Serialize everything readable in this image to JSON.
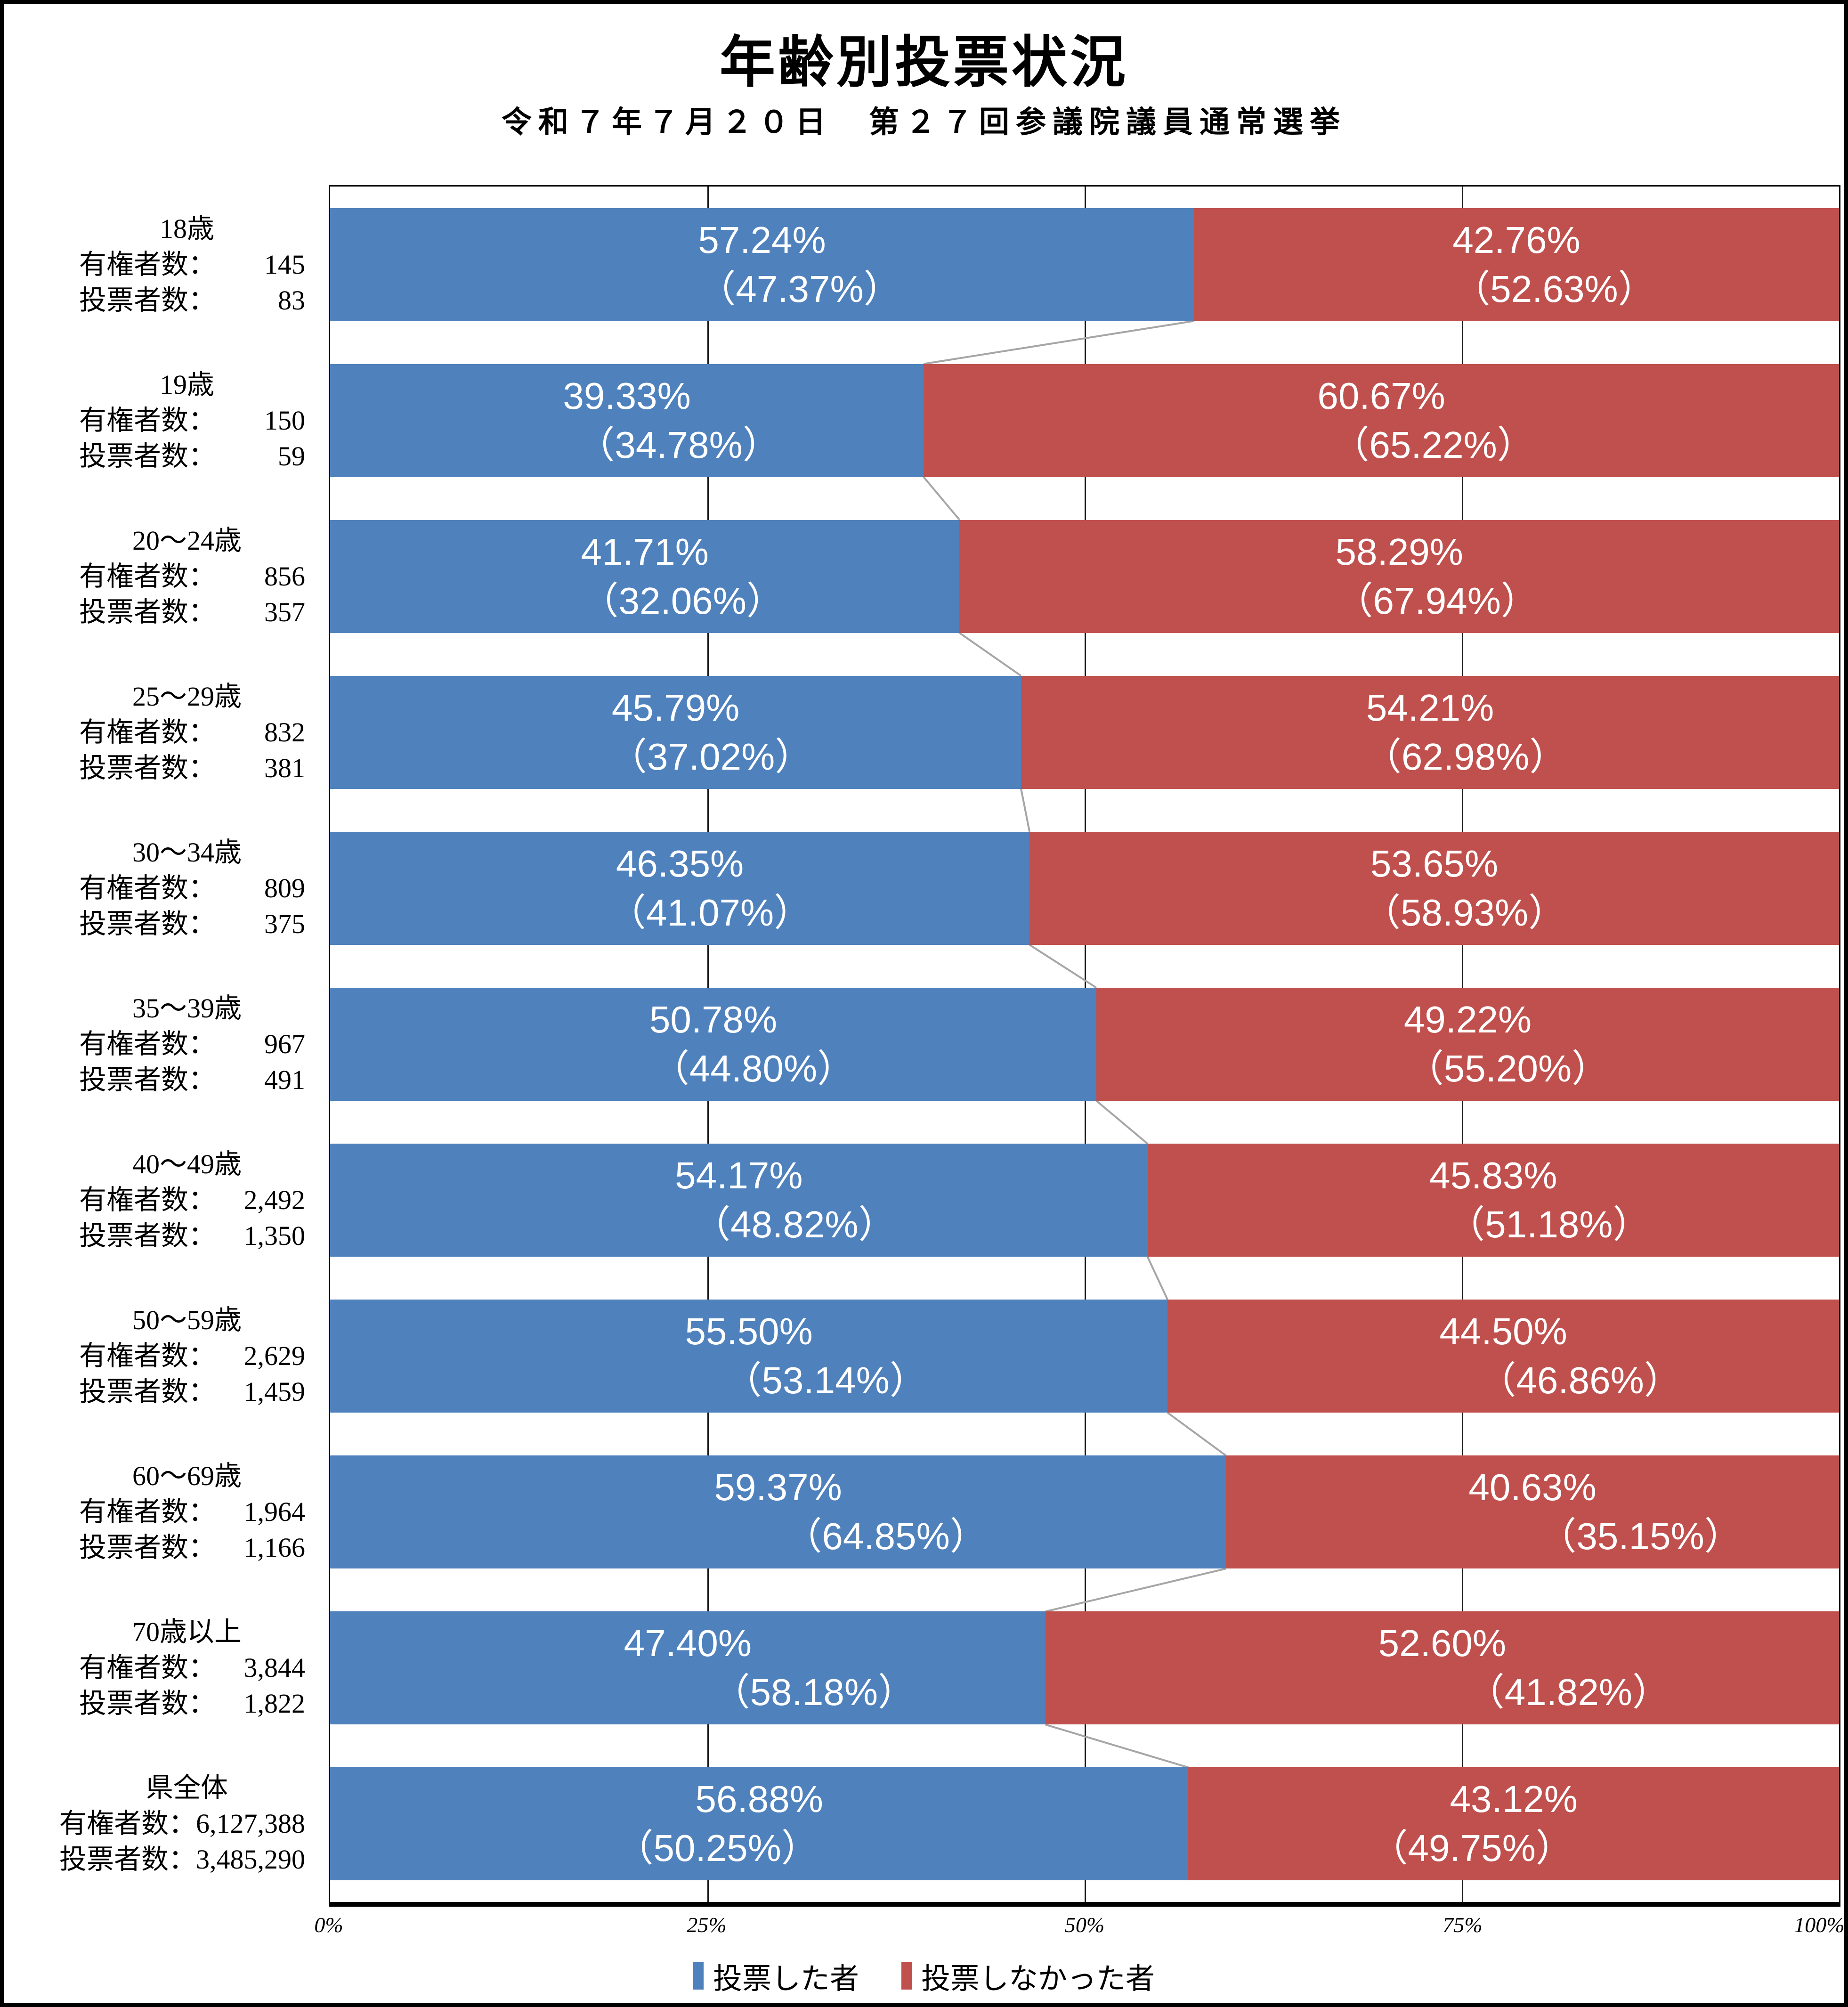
{
  "page": {
    "title": "年齢別投票状況",
    "subtitle": "令和７年７月２０日　第２７回参議院議員通常選挙"
  },
  "legend": {
    "voted_label": "投票した者",
    "not_voted_label": "投票しなかった者"
  },
  "row_stat_labels": {
    "eligible": "有権者数：",
    "voters": "投票者数："
  },
  "colors": {
    "voted": "#4F81BD",
    "not_voted": "#C0504D",
    "connector": "#A6A6A6",
    "bar_label_text": "#FFFFFF"
  },
  "chart_data": {
    "type": "bar",
    "stacked": true,
    "orientation": "horizontal",
    "title": "年齢別投票状況",
    "subtitle": "令和７年７月２０日　第２７回参議院議員通常選挙",
    "xlim": [
      0,
      100
    ],
    "x_ticks": [
      "0%",
      "25%",
      "50%",
      "75%",
      "100%"
    ],
    "grid": "vertical-25pct",
    "legend_position": "bottom",
    "categories": [
      "18歳",
      "19歳",
      "20～24歳",
      "25～29歳",
      "30～34歳",
      "35～39歳",
      "40～49歳",
      "50～59歳",
      "60～69歳",
      "70歳以上",
      "県全体"
    ],
    "series": [
      {
        "name": "投票した者",
        "color": "#4F81BD",
        "values": [
          57.24,
          39.33,
          41.71,
          45.79,
          46.35,
          50.78,
          54.17,
          55.5,
          59.37,
          47.4,
          56.88
        ]
      },
      {
        "name": "投票しなかった者",
        "color": "#C0504D",
        "values": [
          42.76,
          60.67,
          58.29,
          54.21,
          53.65,
          49.22,
          45.83,
          44.5,
          40.63,
          52.6,
          43.12
        ]
      }
    ],
    "rows": [
      {
        "age": "18歳",
        "eligible": "145",
        "voters": "83",
        "voted_pct": 57.24,
        "voted_pct_label": "57.24%",
        "voted_share_label": "（47.37%）",
        "not_pct_label": "42.76%",
        "not_share_label": "（52.63%）",
        "share_dx": 80
      },
      {
        "age": "19歳",
        "eligible": "150",
        "voters": "59",
        "voted_pct": 39.33,
        "voted_pct_label": "39.33%",
        "voted_share_label": "（34.78%）",
        "not_pct_label": "60.67%",
        "not_share_label": "（65.22%）",
        "share_dx": 110
      },
      {
        "age": "20～24歳",
        "eligible": "856",
        "voters": "357",
        "voted_pct": 41.71,
        "voted_pct_label": "41.71%",
        "voted_share_label": "（32.06%）",
        "not_pct_label": "58.29%",
        "not_share_label": "（67.94%）",
        "share_dx": 80
      },
      {
        "age": "25～29歳",
        "eligible": "832",
        "voters": "381",
        "voted_pct": 45.79,
        "voted_pct_label": "45.79%",
        "voted_share_label": "（37.02%）",
        "not_pct_label": "54.21%",
        "not_share_label": "（62.98%）",
        "share_dx": 75
      },
      {
        "age": "30～34歳",
        "eligible": "809",
        "voters": "375",
        "voted_pct": 46.35,
        "voted_pct_label": "46.35%",
        "voted_share_label": "（41.07%）",
        "not_pct_label": "53.65%",
        "not_share_label": "（58.93%）",
        "share_dx": 64
      },
      {
        "age": "35～39歳",
        "eligible": "967",
        "voters": "491",
        "voted_pct": 50.78,
        "voted_pct_label": "50.78%",
        "voted_share_label": "（44.80%）",
        "not_pct_label": "49.22%",
        "not_share_label": "（55.20%）",
        "share_dx": 85
      },
      {
        "age": "40～49歳",
        "eligible": "2,492",
        "voters": "1,350",
        "voted_pct": 54.17,
        "voted_pct_label": "54.17%",
        "voted_share_label": "（48.82%）",
        "not_pct_label": "45.83%",
        "not_share_label": "（51.18%）",
        "share_dx": 118
      },
      {
        "age": "50～59歳",
        "eligible": "2,629",
        "voters": "1,459",
        "voted_pct": 55.5,
        "voted_pct_label": "55.50%",
        "voted_share_label": "（53.14%）",
        "not_pct_label": "44.50%",
        "not_share_label": "（46.86%）",
        "share_dx": 163
      },
      {
        "age": "60～69歳",
        "eligible": "1,964",
        "voters": "1,166",
        "voted_pct": 59.37,
        "voted_pct_label": "59.37%",
        "voted_share_label": "（64.85%）",
        "not_pct_label": "40.63%",
        "not_share_label": "（35.15%）",
        "share_dx": 229
      },
      {
        "age": "70歳以上",
        "eligible": "3,844",
        "voters": "1,822",
        "voted_pct": 47.4,
        "voted_pct_label": "47.40%",
        "voted_share_label": "（58.18%）",
        "not_pct_label": "52.60%",
        "not_share_label": "（41.82%）",
        "share_dx": 268
      },
      {
        "age": "県全体",
        "eligible": "6,127,388",
        "voters": "3,485,290",
        "voted_pct": 56.88,
        "voted_pct_label": "56.88%",
        "voted_share_label": "（50.25%）",
        "not_pct_label": "43.12%",
        "not_share_label": "（49.75%）",
        "share_dx": -89
      }
    ]
  }
}
